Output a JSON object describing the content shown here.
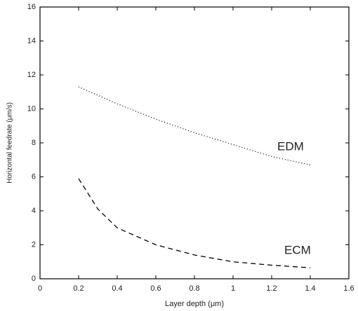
{
  "chart_data": {
    "type": "line",
    "xlabel": "Layer depth (μm)",
    "ylabel": "Horizontal feedrate (μm/s)",
    "annotations": [
      "EDM",
      "ECM"
    ],
    "xlim": [
      0,
      1.6
    ],
    "xticks": [
      0,
      0.2,
      0.4,
      0.6,
      0.8,
      1,
      1.2,
      1.4,
      1.6
    ],
    "ylim": [
      0,
      16
    ],
    "yticks": [
      0,
      2,
      4,
      6,
      8,
      10,
      12,
      14,
      16
    ],
    "series": [
      {
        "name": "EDM",
        "color": "#000000",
        "dash": "dotted",
        "x": [
          0.2,
          0.4,
          0.6,
          0.8,
          1.0,
          1.2,
          1.4
        ],
        "values": [
          11.3,
          10.3,
          9.4,
          8.6,
          7.9,
          7.2,
          6.7
        ]
      },
      {
        "name": "ECM",
        "color": "#000000",
        "dash": "dashed",
        "x": [
          0.2,
          0.3,
          0.4,
          0.6,
          0.8,
          1.0,
          1.2,
          1.4
        ],
        "values": [
          5.9,
          4.1,
          3.0,
          2.0,
          1.4,
          1.0,
          0.8,
          0.65
        ]
      }
    ]
  }
}
